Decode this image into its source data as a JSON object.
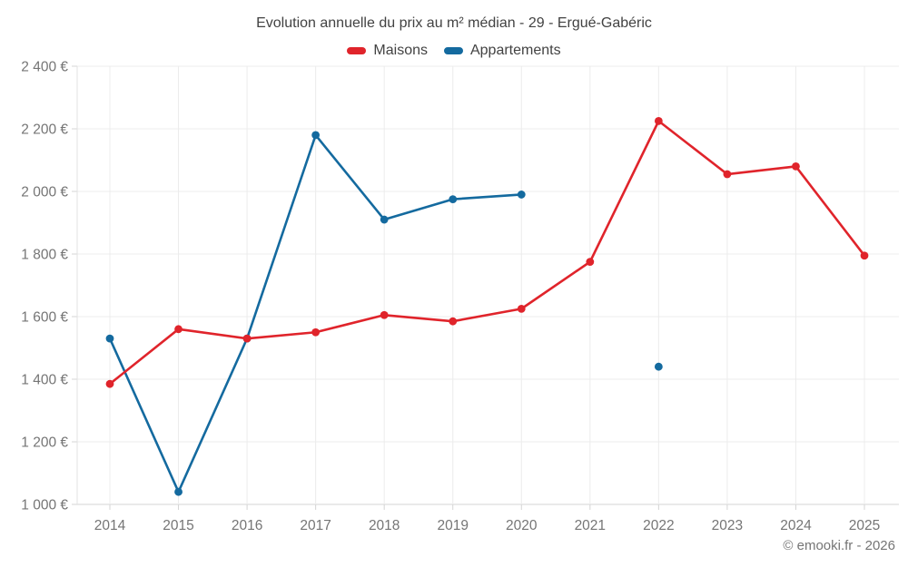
{
  "footer": "© emooki.fr - 2026",
  "chart_data": {
    "type": "line",
    "title": "Evolution annuelle du prix au m² médian - 29 - Ergué-Gabéric",
    "xlabel": "",
    "ylabel": "",
    "ylim": [
      1000,
      2400
    ],
    "ytick_step": 200,
    "grid": true,
    "legend_position": "top",
    "x": [
      2014,
      2015,
      2016,
      2017,
      2018,
      2019,
      2020,
      2021,
      2022,
      2023,
      2024,
      2025
    ],
    "xticks": [
      "2014",
      "2015",
      "2016",
      "2017",
      "2018",
      "2019",
      "2020",
      "2021",
      "2022",
      "2023",
      "2024",
      "2025"
    ],
    "yticks": [
      {
        "value": 1000,
        "label": "1 000 €"
      },
      {
        "value": 1200,
        "label": "1 200 €"
      },
      {
        "value": 1400,
        "label": "1 400 €"
      },
      {
        "value": 1600,
        "label": "1 600 €"
      },
      {
        "value": 1800,
        "label": "1 800 €"
      },
      {
        "value": 2000,
        "label": "2 000 €"
      },
      {
        "value": 2200,
        "label": "2 200 €"
      },
      {
        "value": 2400,
        "label": "2 400 €"
      }
    ],
    "series": [
      {
        "name": "Maisons",
        "color": "#e0242b",
        "values": [
          1385,
          1560,
          1530,
          1550,
          1605,
          1585,
          1625,
          1775,
          2225,
          2055,
          2080,
          1795
        ]
      },
      {
        "name": "Appartements",
        "color": "#146a9f",
        "values": [
          1530,
          1040,
          1530,
          2180,
          1910,
          1975,
          1990,
          null,
          1440,
          null,
          null,
          null
        ]
      }
    ],
    "colors": {
      "grid": "#ececec",
      "axis": "#d4d4d4",
      "tick_label": "#757575",
      "title_text": "#424242"
    }
  }
}
